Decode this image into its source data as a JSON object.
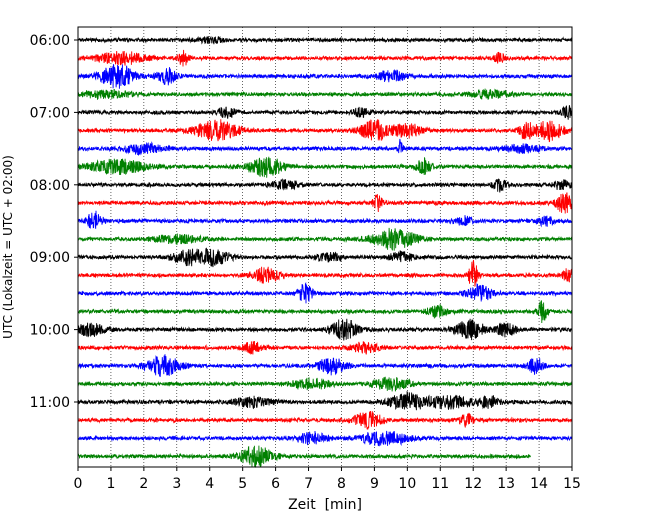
{
  "chart_data": {
    "type": "line",
    "title": "",
    "xlabel": "Zeit  [min]",
    "ylabel": "UTC (Lokalzeit = UTC + 02:00)",
    "xlim": [
      0,
      15
    ],
    "x_ticks": [
      0,
      1,
      2,
      3,
      4,
      5,
      6,
      7,
      8,
      9,
      10,
      11,
      12,
      13,
      14,
      15
    ],
    "x_tick_labels": [
      "0",
      "1",
      "2",
      "3",
      "4",
      "5",
      "6",
      "7",
      "8",
      "9",
      "10",
      "11",
      "12",
      "13",
      "14",
      "15"
    ],
    "y_tick_labels": [
      "06:00",
      "07:00",
      "08:00",
      "09:00",
      "10:00",
      "11:00"
    ],
    "y_tick_rows": [
      0,
      4,
      8,
      12,
      16,
      20
    ],
    "grid_x": "dotted vertical lines at each minute",
    "trace_minutes_per_row": 15,
    "last_row_end_min": 13.75,
    "row_colors": [
      "#000000",
      "#ff0000",
      "#0000ff",
      "#008000"
    ],
    "rows": [
      {
        "start": "06:00",
        "bursts": [
          [
            4.0,
            0.25,
            3
          ]
        ]
      },
      {
        "start": "06:15",
        "bursts": [
          [
            1.3,
            0.5,
            6
          ],
          [
            3.2,
            0.1,
            8
          ],
          [
            12.8,
            0.1,
            5
          ]
        ]
      },
      {
        "start": "06:30",
        "bursts": [
          [
            1.2,
            0.35,
            12
          ],
          [
            2.7,
            0.2,
            8
          ],
          [
            9.5,
            0.3,
            5
          ]
        ]
      },
      {
        "start": "06:45",
        "bursts": [
          [
            0.8,
            0.5,
            4
          ],
          [
            12.5,
            0.4,
            4
          ]
        ]
      },
      {
        "start": "07:00",
        "bursts": [
          [
            4.5,
            0.2,
            5
          ],
          [
            8.6,
            0.2,
            4
          ],
          [
            14.9,
            0.15,
            6
          ]
        ]
      },
      {
        "start": "07:15",
        "bursts": [
          [
            4.2,
            0.45,
            10
          ],
          [
            9.0,
            0.3,
            10
          ],
          [
            10.0,
            0.3,
            7
          ],
          [
            13.6,
            0.15,
            8
          ],
          [
            14.3,
            0.3,
            10
          ]
        ]
      },
      {
        "start": "07:30",
        "bursts": [
          [
            2.0,
            0.4,
            5
          ],
          [
            9.8,
            0.05,
            10
          ],
          [
            13.5,
            0.4,
            4
          ]
        ]
      },
      {
        "start": "07:45",
        "bursts": [
          [
            1.2,
            0.6,
            7
          ],
          [
            5.7,
            0.35,
            10
          ],
          [
            10.5,
            0.15,
            8
          ]
        ]
      },
      {
        "start": "08:00",
        "bursts": [
          [
            6.3,
            0.3,
            4
          ],
          [
            12.8,
            0.15,
            6
          ],
          [
            14.7,
            0.2,
            4
          ]
        ]
      },
      {
        "start": "08:15",
        "bursts": [
          [
            9.1,
            0.1,
            9
          ],
          [
            14.8,
            0.2,
            10
          ]
        ]
      },
      {
        "start": "08:30",
        "bursts": [
          [
            0.5,
            0.15,
            10
          ],
          [
            11.7,
            0.2,
            4
          ],
          [
            14.2,
            0.2,
            4
          ]
        ]
      },
      {
        "start": "08:45",
        "bursts": [
          [
            3.0,
            0.5,
            4
          ],
          [
            9.6,
            0.45,
            10
          ]
        ]
      },
      {
        "start": "09:00",
        "bursts": [
          [
            3.3,
            0.3,
            7
          ],
          [
            4.1,
            0.35,
            8
          ],
          [
            7.6,
            0.3,
            4
          ],
          [
            9.8,
            0.25,
            5
          ]
        ]
      },
      {
        "start": "09:15",
        "bursts": [
          [
            5.7,
            0.3,
            7
          ],
          [
            12.0,
            0.1,
            14
          ],
          [
            14.9,
            0.15,
            6
          ]
        ]
      },
      {
        "start": "09:30",
        "bursts": [
          [
            6.9,
            0.15,
            9
          ],
          [
            12.2,
            0.25,
            8
          ]
        ]
      },
      {
        "start": "09:45",
        "bursts": [
          [
            10.9,
            0.2,
            6
          ],
          [
            14.1,
            0.1,
            11
          ]
        ]
      },
      {
        "start": "10:00",
        "bursts": [
          [
            0.4,
            0.3,
            6
          ],
          [
            8.1,
            0.3,
            10
          ],
          [
            11.9,
            0.3,
            9
          ],
          [
            13.0,
            0.2,
            7
          ]
        ]
      },
      {
        "start": "10:15",
        "bursts": [
          [
            5.3,
            0.2,
            5
          ],
          [
            8.7,
            0.3,
            5
          ]
        ]
      },
      {
        "start": "10:30",
        "bursts": [
          [
            2.6,
            0.35,
            10
          ],
          [
            7.7,
            0.3,
            8
          ],
          [
            13.9,
            0.15,
            9
          ]
        ]
      },
      {
        "start": "10:45",
        "bursts": [
          [
            7.1,
            0.4,
            5
          ],
          [
            9.5,
            0.4,
            6
          ]
        ]
      },
      {
        "start": "11:00",
        "bursts": [
          [
            5.3,
            0.4,
            5
          ],
          [
            10.0,
            0.4,
            8
          ],
          [
            11.3,
            0.5,
            6
          ],
          [
            12.5,
            0.2,
            6
          ]
        ]
      },
      {
        "start": "11:15",
        "bursts": [
          [
            8.8,
            0.3,
            8
          ],
          [
            11.8,
            0.15,
            6
          ]
        ]
      },
      {
        "start": "11:30",
        "bursts": [
          [
            7.1,
            0.3,
            6
          ],
          [
            9.3,
            0.5,
            7
          ]
        ]
      },
      {
        "start": "11:45",
        "bursts": [
          [
            5.4,
            0.35,
            10
          ]
        ]
      }
    ]
  }
}
